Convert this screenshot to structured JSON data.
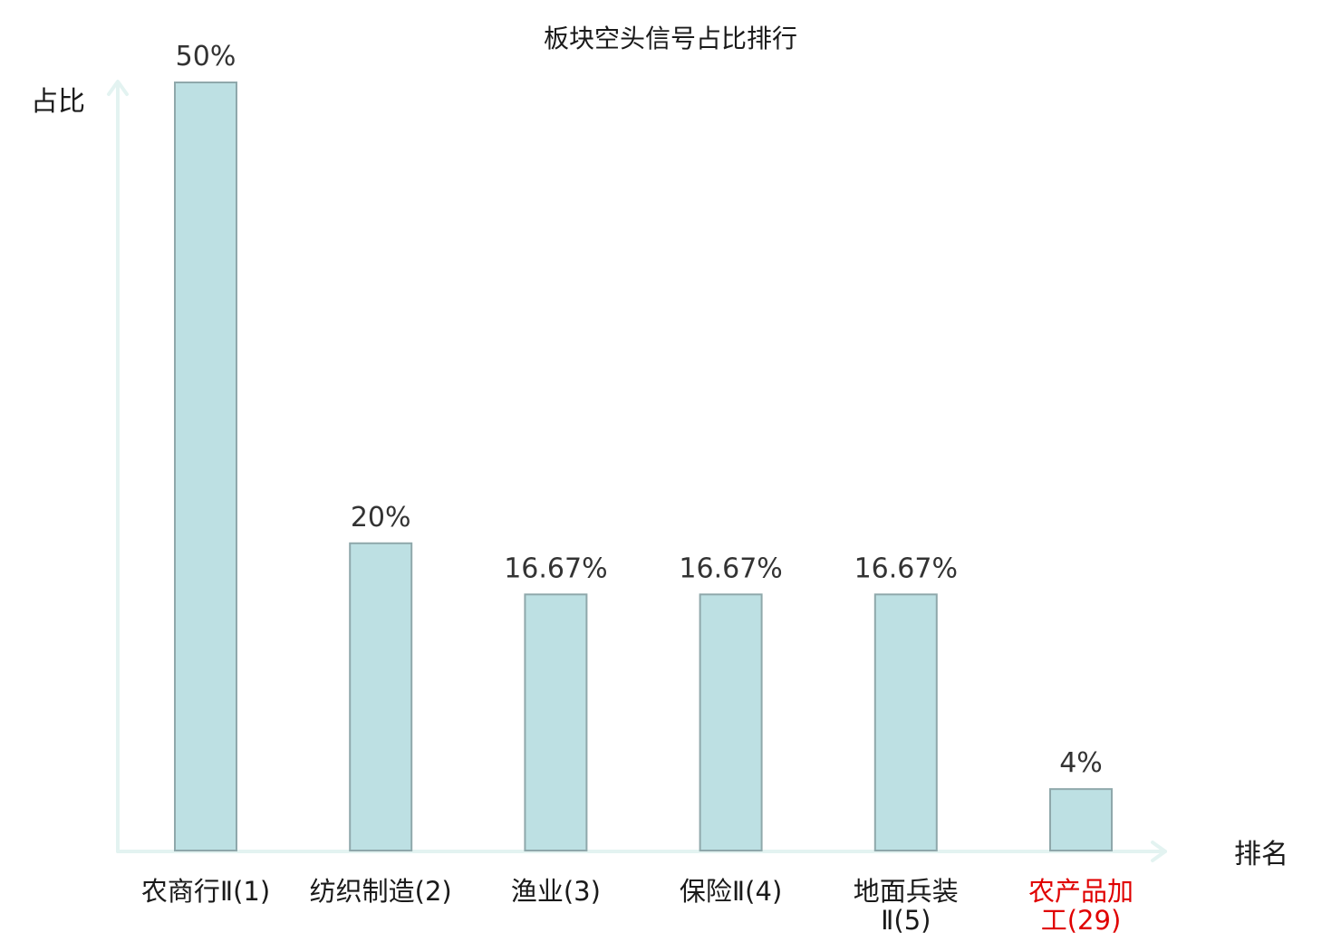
{
  "chart_data": {
    "type": "bar",
    "title": "板块空头信号占比排行",
    "ylabel": "占比",
    "xlabel": "排名",
    "categories": [
      [
        "农商行Ⅱ(1)"
      ],
      [
        "纺织制造(2)"
      ],
      [
        "渔业(3)"
      ],
      [
        "保险Ⅱ(4)"
      ],
      [
        "地面兵装",
        "Ⅱ(5)"
      ],
      [
        "农产品加",
        "工(29)"
      ]
    ],
    "values": [
      50,
      20,
      16.67,
      16.67,
      16.67,
      4
    ],
    "value_labels": [
      "50%",
      "20%",
      "16.67%",
      "16.67%",
      "16.67%",
      "4%"
    ],
    "highlight_index": 5,
    "colors": {
      "bar": "#bde0e3",
      "bar_edge": "#8fa8ab",
      "axis": "#e3f3f1",
      "highlight": "#e00000"
    },
    "ylim": [
      0,
      50
    ],
    "grid": false,
    "legend": "none"
  }
}
